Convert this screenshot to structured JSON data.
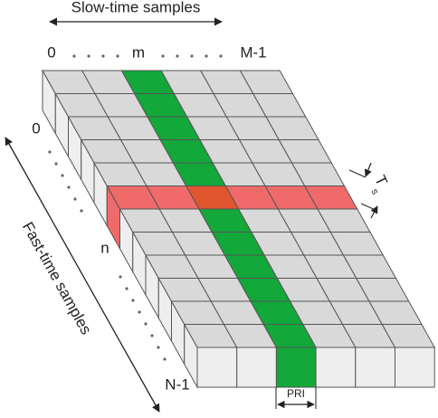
{
  "slow_time": {
    "title": "Slow-time samples",
    "start": "0",
    "index": "m",
    "end": "M-1"
  },
  "fast_time": {
    "title": "Fast-time samples",
    "start": "0",
    "index": "n",
    "end": "N-1"
  },
  "sampling_interval": {
    "symbol": "T",
    "subscript": "s"
  },
  "pulse_interval": {
    "label": "PRI"
  }
}
